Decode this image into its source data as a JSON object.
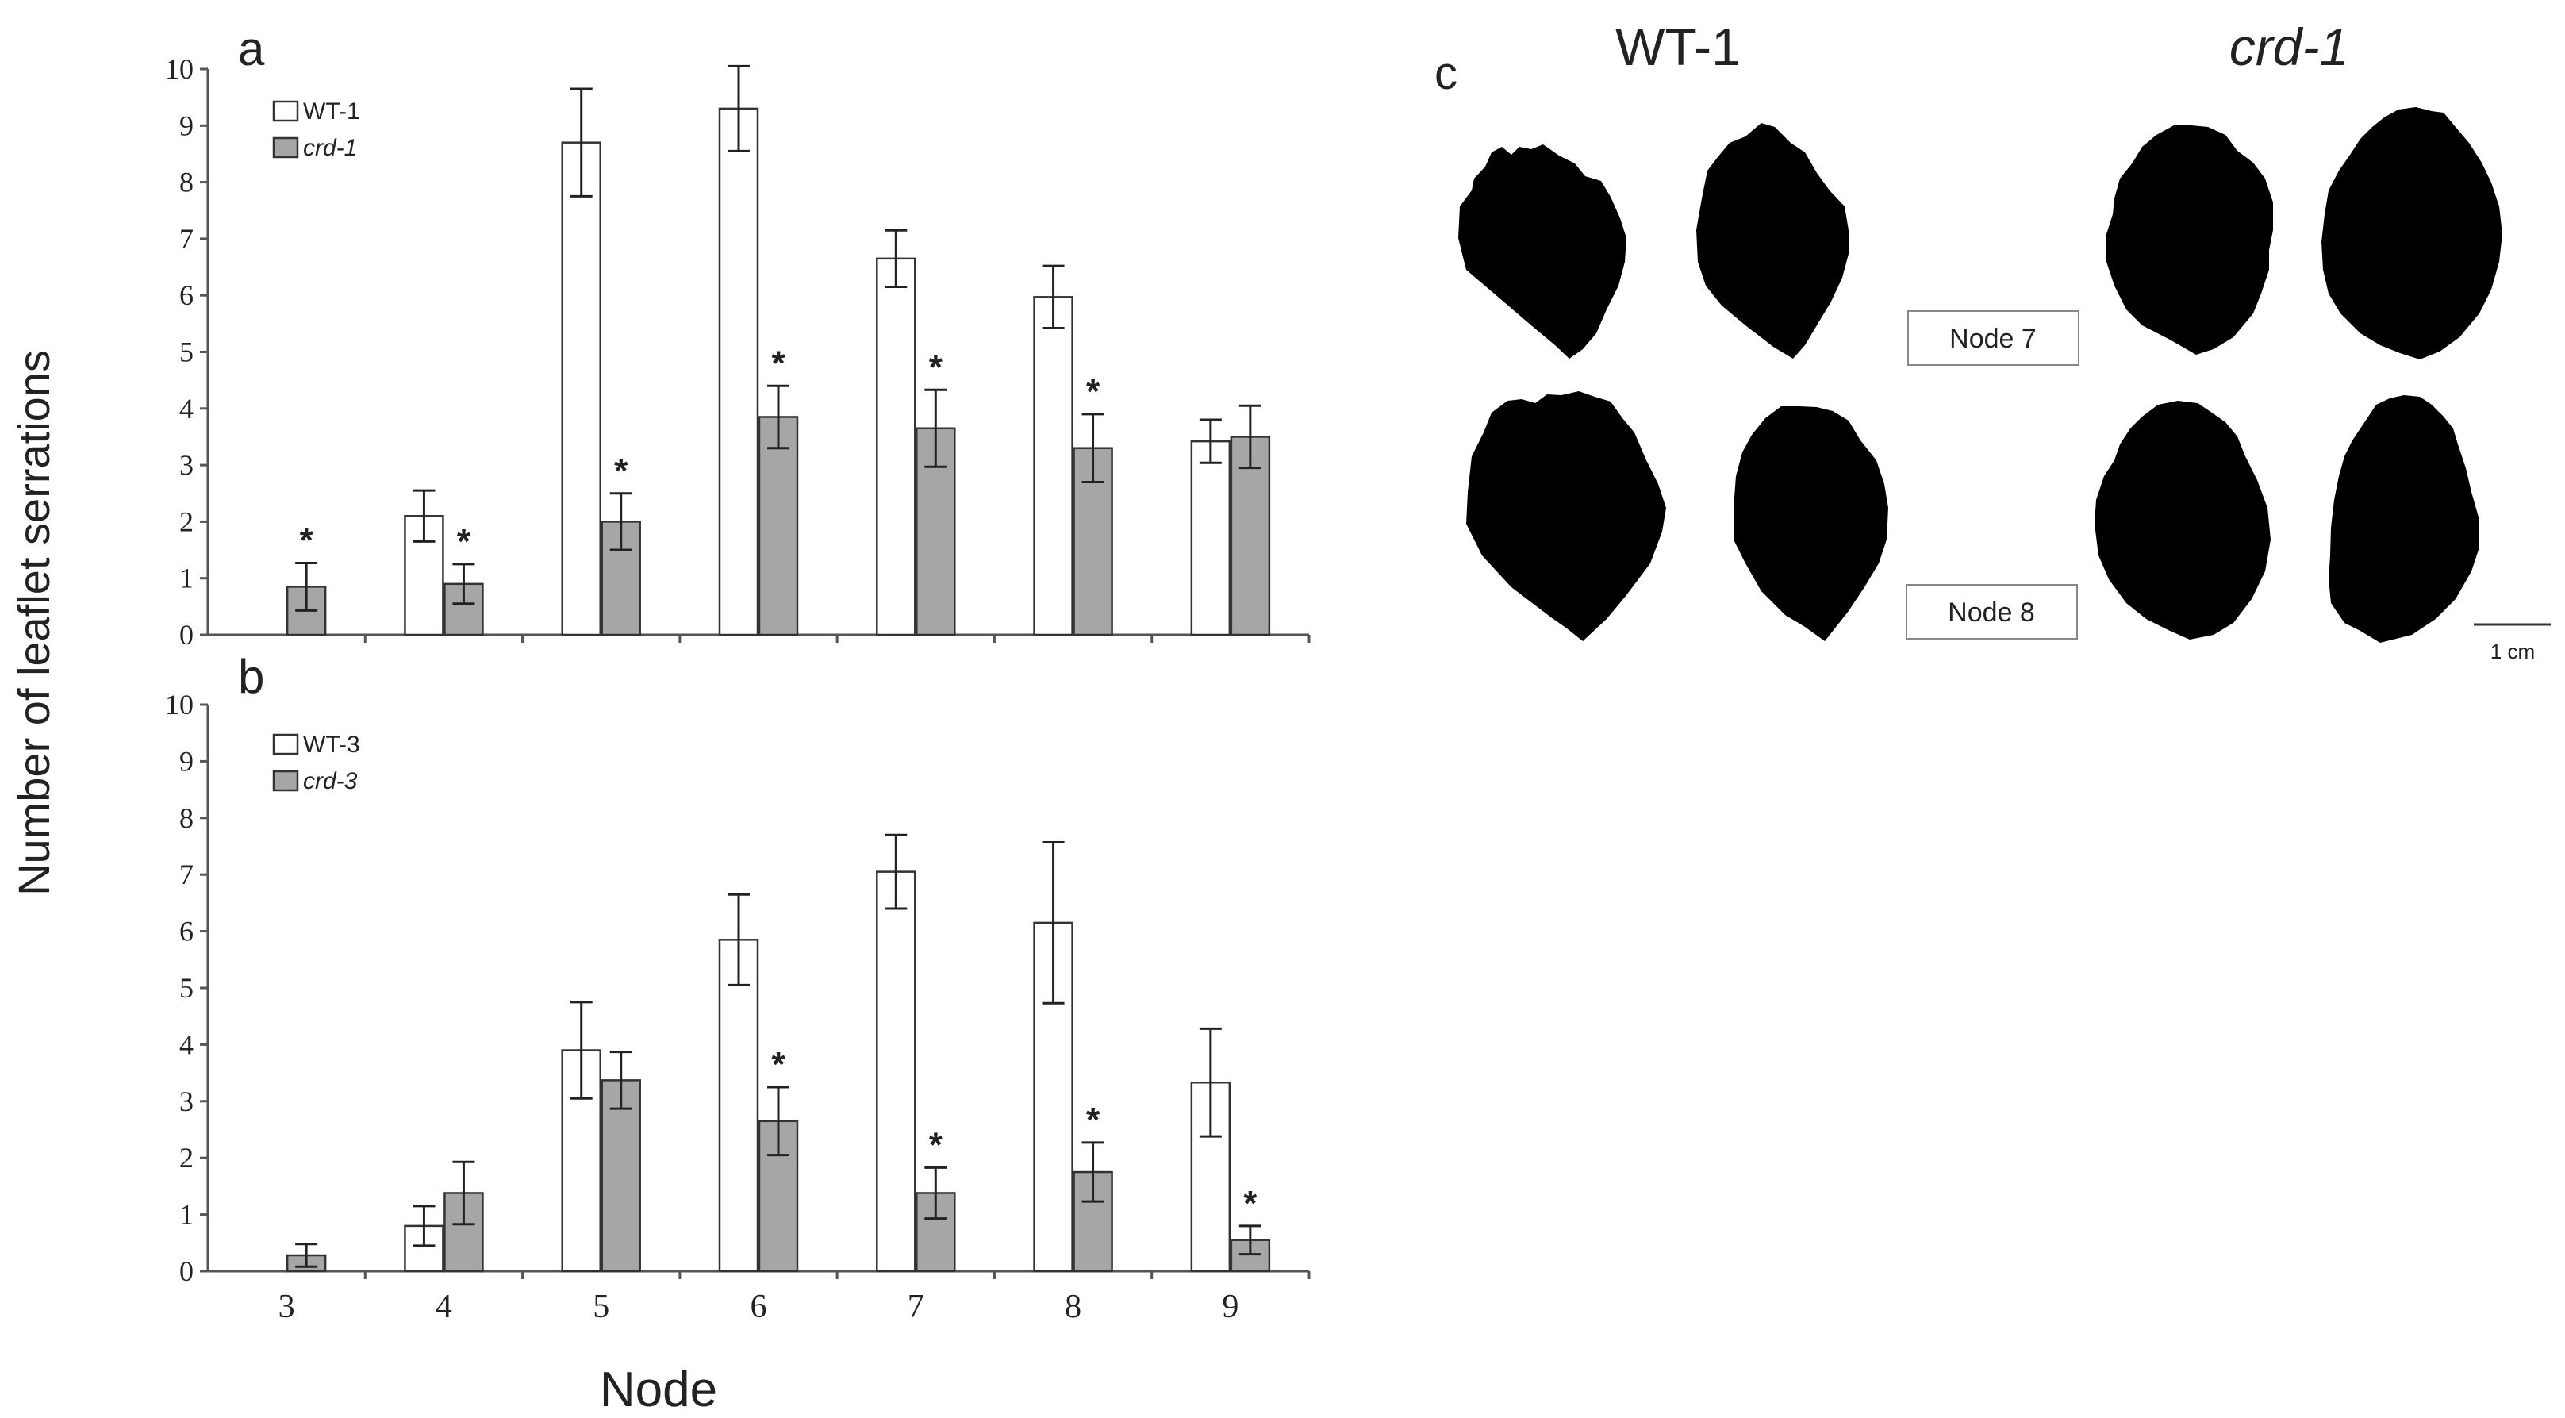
{
  "figure": {
    "y_axis_label": "Number of leaflet serrations",
    "x_axis_label": "Node",
    "significance_mark": "*"
  },
  "colors": {
    "wt_fill": "#ffffff",
    "mutant_fill": "#a6a6a6",
    "axis": "#555555",
    "leaf": "#000000"
  },
  "chart_data": [
    {
      "panel": "a",
      "type": "bar",
      "categories": [
        "3",
        "4",
        "5",
        "6",
        "7",
        "8",
        "9"
      ],
      "ylim": [
        0,
        10
      ],
      "yticks": [
        "0",
        "1",
        "2",
        "3",
        "4",
        "5",
        "6",
        "7",
        "8",
        "9",
        "10"
      ],
      "series": [
        {
          "name": "WT-1",
          "values": [
            0,
            2.1,
            8.7,
            9.3,
            6.65,
            5.97,
            3.42
          ],
          "errors": [
            0,
            0.45,
            0.95,
            0.75,
            0.5,
            0.55,
            0.38
          ],
          "significant": [
            false,
            false,
            false,
            false,
            false,
            false,
            false
          ]
        },
        {
          "name": "crd-1",
          "values": [
            0.85,
            0.9,
            2.0,
            3.85,
            3.65,
            3.3,
            3.5
          ],
          "errors": [
            0.42,
            0.35,
            0.5,
            0.55,
            0.68,
            0.6,
            0.55
          ],
          "significant": [
            true,
            true,
            true,
            true,
            true,
            true,
            false
          ]
        }
      ]
    },
    {
      "panel": "b",
      "type": "bar",
      "categories": [
        "3",
        "4",
        "5",
        "6",
        "7",
        "8",
        "9"
      ],
      "ylim": [
        0,
        10
      ],
      "yticks": [
        "0",
        "1",
        "2",
        "3",
        "4",
        "5",
        "6",
        "7",
        "8",
        "9",
        "10"
      ],
      "series": [
        {
          "name": "WT-3",
          "values": [
            0,
            0.8,
            3.9,
            5.85,
            7.05,
            6.15,
            3.33
          ],
          "errors": [
            0,
            0.35,
            0.85,
            0.8,
            0.65,
            1.42,
            0.95
          ],
          "significant": [
            false,
            false,
            false,
            false,
            false,
            false,
            false
          ]
        },
        {
          "name": "crd-3",
          "values": [
            0.28,
            1.38,
            3.37,
            2.65,
            1.38,
            1.75,
            0.55
          ],
          "errors": [
            0.2,
            0.55,
            0.5,
            0.6,
            0.45,
            0.52,
            0.25
          ],
          "significant": [
            false,
            false,
            false,
            true,
            true,
            true,
            true
          ]
        }
      ]
    }
  ],
  "panel_c": {
    "label": "c",
    "col_wt": "WT-1",
    "col_mutant": "crd-1",
    "rows": [
      "Node 7",
      "Node 8"
    ],
    "scale_bar": "1 cm"
  }
}
